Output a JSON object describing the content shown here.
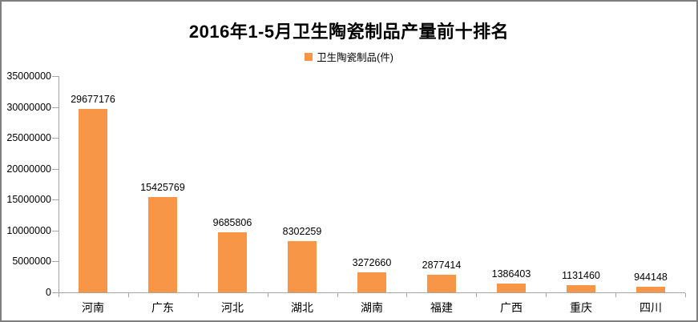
{
  "window": {
    "background": "#ffffff",
    "frame_border_color": "#7f7f7f",
    "axis_color": "#a6a6a6"
  },
  "chart_data": {
    "type": "bar",
    "title": "2016年1-5月卫生陶瓷制品产量前十排名",
    "legend": [
      {
        "label": "卫生陶瓷制品(件)",
        "color": "#f79646"
      }
    ],
    "legend_position": "top",
    "categories": [
      "河南",
      "广东",
      "河北",
      "湖北",
      "湖南",
      "福建",
      "广西",
      "重庆",
      "四川"
    ],
    "values": [
      29677176,
      15425769,
      9685806,
      8302259,
      3272660,
      2877414,
      1386403,
      1131460,
      944148
    ],
    "value_labels": [
      "29677176",
      "15425769",
      "9685806",
      "8302259",
      "3272660",
      "2877414",
      "1386403",
      "1131460",
      "944148"
    ],
    "bar_color": "#f79646",
    "xlabel": "",
    "ylabel": "",
    "ylim": [
      0,
      35000000
    ],
    "ytick_step": 5000000,
    "yticks": [
      0,
      5000000,
      10000000,
      15000000,
      20000000,
      25000000,
      30000000,
      35000000
    ],
    "ytick_labels": [
      "0",
      "5000000",
      "10000000",
      "15000000",
      "20000000",
      "25000000",
      "30000000",
      "35000000"
    ],
    "grid": false
  }
}
